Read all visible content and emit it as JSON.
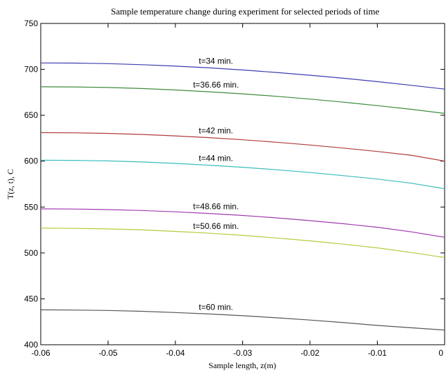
{
  "chart_data": {
    "type": "line",
    "title": "Sample temperature change during experiment for selected periods of time",
    "xlabel": "Sample length, z(m)",
    "ylabel": "T(z, t), C",
    "xlim": [
      -0.06,
      0
    ],
    "ylim": [
      400,
      750
    ],
    "xticks": [
      -0.06,
      -0.05,
      -0.04,
      -0.03,
      -0.02,
      -0.01,
      0
    ],
    "xtick_labels": [
      "-0.06",
      "-0.05",
      "-0.04",
      "-0.03",
      "-0.02",
      "-0.01",
      "0"
    ],
    "yticks": [
      400,
      450,
      500,
      550,
      600,
      650,
      700,
      750
    ],
    "ytick_labels": [
      "400",
      "450",
      "500",
      "550",
      "600",
      "650",
      "700",
      "750"
    ],
    "grid": false,
    "x": [
      -0.06,
      -0.055,
      -0.05,
      -0.045,
      -0.04,
      -0.035,
      -0.03,
      -0.025,
      -0.02,
      -0.015,
      -0.01,
      -0.005,
      0
    ],
    "series": [
      {
        "label": "t=34 min.",
        "color": "#3b3bb0",
        "values": [
          707,
          706.8,
          706.2,
          705.1,
          703.5,
          701.6,
          699.3,
          696.6,
          693.6,
          690.3,
          686.6,
          682.6,
          678.5
        ]
      },
      {
        "label": "t=36.66 min.",
        "color": "#3a8a3a",
        "values": [
          681,
          680.8,
          680.2,
          679.1,
          677.5,
          675.6,
          673.3,
          670.6,
          667.6,
          664.2,
          660.5,
          656.5,
          652.0
        ]
      },
      {
        "label": "t=42 min.",
        "color": "#b03a3a",
        "values": [
          631,
          630.8,
          630.2,
          629.1,
          627.5,
          625.6,
          623.3,
          620.6,
          617.6,
          614.2,
          610.5,
          606.5,
          600.0
        ]
      },
      {
        "label": "t=44 min.",
        "color": "#3abcbc",
        "values": [
          601,
          600.8,
          600.2,
          599.1,
          597.5,
          595.6,
          593.3,
          590.6,
          587.6,
          584.2,
          580.5,
          576.0,
          570.0
        ]
      },
      {
        "label": "t=48.66 min.",
        "color": "#a03ab0",
        "values": [
          548,
          547.8,
          547.2,
          546.2,
          544.8,
          543.0,
          540.8,
          538.2,
          535.2,
          531.8,
          528.0,
          523.0,
          517.0
        ]
      },
      {
        "label": "t=50.66 min.",
        "color": "#b8c83a",
        "values": [
          527,
          526.8,
          526.2,
          525.1,
          523.5,
          521.5,
          519.1,
          516.3,
          513.1,
          509.5,
          505.5,
          500.5,
          495.0
        ]
      },
      {
        "label": "t=60 min.",
        "color": "#555555",
        "values": [
          438,
          437.8,
          437.3,
          436.4,
          435.1,
          433.5,
          431.6,
          429.4,
          426.9,
          424.1,
          421.0,
          418.5,
          416.0
        ]
      }
    ]
  }
}
